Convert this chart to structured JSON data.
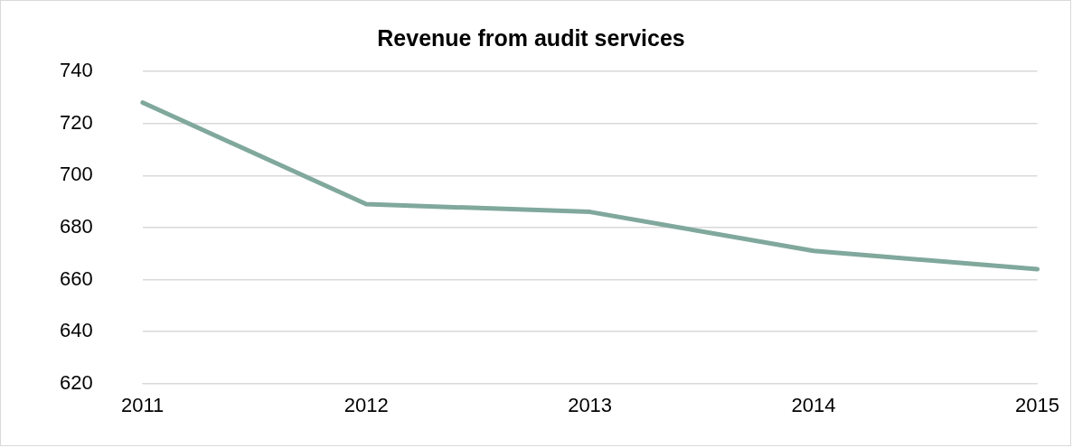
{
  "chart_data": {
    "type": "line",
    "title": "Revenue from audit services",
    "categories": [
      "2011",
      "2012",
      "2013",
      "2014",
      "2015"
    ],
    "series": [
      {
        "color": "#80a89c",
        "values": [
          728,
          689,
          686,
          671,
          664
        ]
      }
    ],
    "ylim": [
      620,
      740
    ],
    "yticks": [
      620,
      640,
      660,
      680,
      700,
      720,
      740
    ],
    "grid": "y",
    "legend": false,
    "marker": "none",
    "line_style": "solid"
  }
}
